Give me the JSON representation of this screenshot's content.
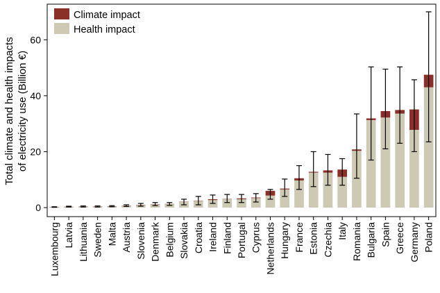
{
  "chart_data": {
    "type": "bar",
    "stacked": true,
    "ylabel_lines": [
      "Total climate and health impacts",
      "of electricity use (Billion €)"
    ],
    "xlabel": "",
    "ylim": [
      0,
      72
    ],
    "yticks": [
      0,
      20,
      40,
      60
    ],
    "grid": false,
    "legend_position": "top-left",
    "categories": [
      "Luxembourg",
      "Latvia",
      "Lithuania",
      "Sweden",
      "Malta",
      "Austria",
      "Slovenia",
      "Denmark",
      "Belgium",
      "Slovakia",
      "Croatia",
      "Ireland",
      "Finland",
      "Portugal",
      "Cyprus",
      "Netherlands",
      "Hungary",
      "France",
      "Estonia",
      "Czechia",
      "Italy",
      "Romania",
      "Bulgaria",
      "Spain",
      "Greece",
      "Germany",
      "Poland"
    ],
    "series": [
      {
        "name": "Health impact",
        "color": "#cdc9b3",
        "values": [
          0.1,
          0.2,
          0.3,
          0.3,
          0.4,
          0.6,
          0.9,
          1.1,
          1.2,
          2.0,
          2.4,
          2.7,
          3.0,
          3.0,
          3.4,
          4.3,
          6.5,
          9.7,
          12.5,
          12.5,
          11.0,
          20.3,
          31.3,
          32.2,
          33.6,
          27.8,
          43.0
        ]
      },
      {
        "name": "Climate impact",
        "color": "#8b3028",
        "values": [
          0.1,
          0.1,
          0.1,
          0.1,
          0.1,
          0.1,
          0.1,
          0.1,
          0.1,
          0.1,
          0.1,
          0.3,
          0.1,
          0.3,
          0.2,
          1.7,
          0.3,
          0.8,
          0.3,
          0.8,
          2.6,
          0.5,
          0.6,
          2.3,
          1.3,
          7.3,
          4.5
        ]
      }
    ],
    "error_bars": {
      "low": [
        0.1,
        0.2,
        0.2,
        0.2,
        0.3,
        0.4,
        0.5,
        0.7,
        0.8,
        1.0,
        1.0,
        1.5,
        1.8,
        1.8,
        2.0,
        3.0,
        4.0,
        6.5,
        7.5,
        8.0,
        8.0,
        10.5,
        17.0,
        21.0,
        23.0,
        20.0,
        23.5
      ],
      "high": [
        0.3,
        0.5,
        0.6,
        0.6,
        0.7,
        1.0,
        1.5,
        1.8,
        1.8,
        3.0,
        4.0,
        4.5,
        4.7,
        4.7,
        5.0,
        6.5,
        10.2,
        15.0,
        20.0,
        19.0,
        17.5,
        33.5,
        50.3,
        49.5,
        50.3,
        45.7,
        70.0
      ]
    }
  }
}
